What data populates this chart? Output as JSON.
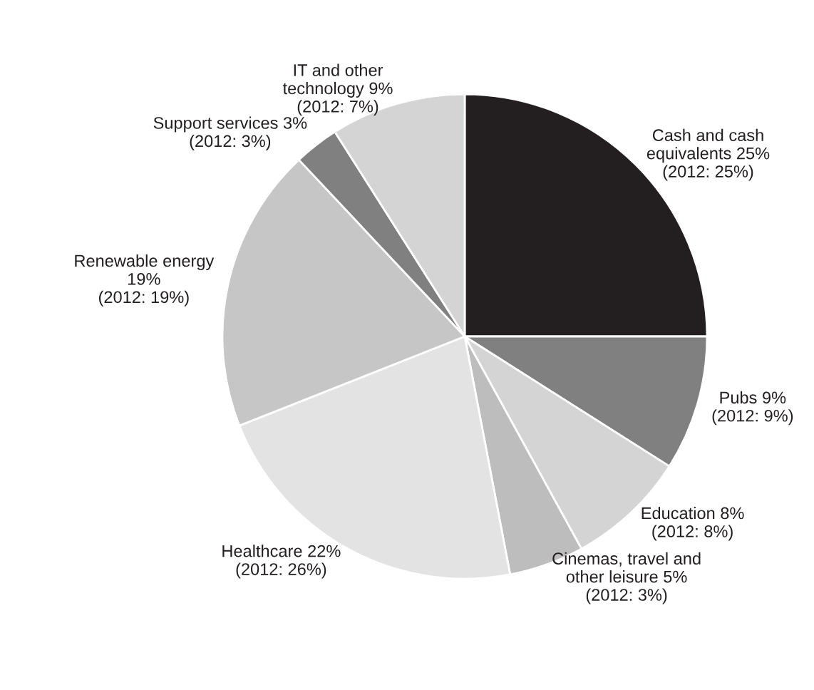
{
  "chart_data": {
    "type": "pie",
    "categories": [
      "Cash and cash\nequivalents",
      "Pubs",
      "Education",
      "Cinemas, travel and\nother leisure",
      "Healthcare",
      "Renewable energy",
      "Support services",
      "IT and other\ntechnology"
    ],
    "values": [
      25,
      9,
      8,
      5,
      22,
      19,
      3,
      9
    ],
    "value_labels": [
      "25%\n(2012: 25%)",
      "9%\n(2012: 9%)",
      "8%\n(2012: 8%)",
      "5%\n(2012: 3%)",
      "22%\n(2012: 26%)",
      "\n19%\n(2012: 19%)",
      "3%\n(2012: 3%)",
      "9%\n(2012: 7%)"
    ],
    "colors": [
      "#231f20",
      "#808080",
      "#d4d4d4",
      "#bdbdbd",
      "#e3e3e3",
      "#c6c6c6",
      "#808080",
      "#d4d4d4"
    ],
    "legend": false
  }
}
